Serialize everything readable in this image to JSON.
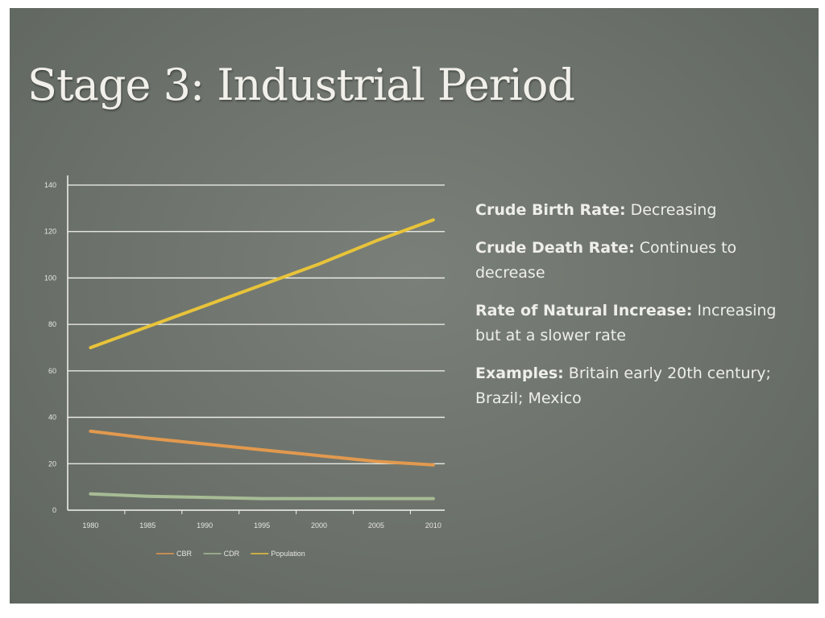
{
  "slide": {
    "title": "Stage 3: Industrial Period"
  },
  "bullets": [
    {
      "term": "Crude Birth Rate:",
      "text": " Decreasing"
    },
    {
      "term": "Crude Death Rate:",
      "text": " Continues to decrease"
    },
    {
      "term": "Rate of Natural Increase:",
      "text": " Increasing but at a slower rate"
    },
    {
      "term": "Examples:",
      "text": " Britain early 20th century; Brazil; Mexico"
    }
  ],
  "colors": {
    "slide_background": "#6c726b",
    "gridline": "#f4f4f0",
    "axis_text": "#e6e6e0",
    "cbr": "#e2994e",
    "cdr": "#a7bb95",
    "population": "#e8c33a"
  },
  "chart_data": {
    "type": "line",
    "title": "",
    "xlabel": "",
    "ylabel": "",
    "x": [
      1980,
      1985,
      1990,
      1995,
      2000,
      2005,
      2010
    ],
    "ylim": [
      0,
      140
    ],
    "yticks": [
      0,
      20,
      40,
      60,
      80,
      100,
      120,
      140
    ],
    "grid": true,
    "legend_position": "bottom",
    "series": [
      {
        "name": "CBR",
        "color": "#e2994e",
        "values": [
          34,
          31,
          28.5,
          26,
          23.5,
          21,
          19.5
        ]
      },
      {
        "name": "CDR",
        "color": "#a7bb95",
        "values": [
          7,
          6,
          5.5,
          5,
          5,
          5,
          5
        ]
      },
      {
        "name": "Population",
        "color": "#e8c33a",
        "values": [
          70,
          79,
          88,
          97,
          106,
          116,
          125
        ]
      }
    ]
  }
}
